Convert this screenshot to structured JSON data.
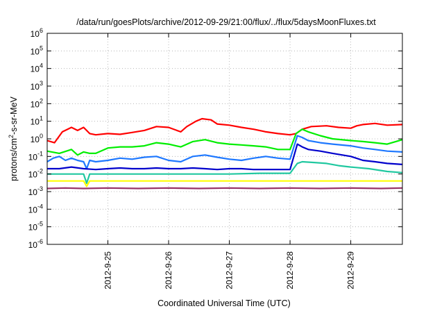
{
  "chart_data": {
    "type": "line",
    "title": "/data/run/goesPlots/archive/2012-09-29/21:00/flux/../flux/5daysMoonFluxes.txt",
    "xlabel": "Coordinated Universal Time (UTC)",
    "ylabel": {
      "base": "protons/cm",
      "sup": "2",
      "rest": "-s-sr-MeV"
    },
    "y_scale": "log",
    "ylim": [
      1e-06,
      1000000.0
    ],
    "y_ticks": [
      {
        "value": 1e-06,
        "base": "10",
        "exp": "-6"
      },
      {
        "value": 1e-05,
        "base": "10",
        "exp": "-5"
      },
      {
        "value": 0.0001,
        "base": "10",
        "exp": "-4"
      },
      {
        "value": 0.001,
        "base": "10",
        "exp": "-3"
      },
      {
        "value": 0.01,
        "base": "10",
        "exp": "-2"
      },
      {
        "value": 0.1,
        "base": "10",
        "exp": "-1"
      },
      {
        "value": 1,
        "base": "10",
        "exp": "0"
      },
      {
        "value": 10,
        "base": "10",
        "exp": "1"
      },
      {
        "value": 100,
        "base": "10",
        "exp": "2"
      },
      {
        "value": 1000,
        "base": "10",
        "exp": "3"
      },
      {
        "value": 10000,
        "base": "10",
        "exp": "4"
      },
      {
        "value": 100000,
        "base": "10",
        "exp": "5"
      },
      {
        "value": 1000000,
        "base": "10",
        "exp": "6"
      }
    ],
    "xlim": [
      24.0,
      29.85
    ],
    "x_ticks": [
      {
        "value": 25,
        "label": "2012-9-25"
      },
      {
        "value": 26,
        "label": "2012-9-26"
      },
      {
        "value": 27,
        "label": "2012-9-27"
      },
      {
        "value": 28,
        "label": "2012-9-28"
      },
      {
        "value": 29,
        "label": "2012-9-29"
      }
    ],
    "grid": true,
    "legend": "none",
    "series": [
      {
        "color": "#ff0000",
        "x": [
          24.0,
          24.12,
          24.25,
          24.4,
          24.5,
          24.6,
          24.7,
          24.8,
          25.0,
          25.2,
          25.4,
          25.6,
          25.8,
          26.0,
          26.2,
          26.3,
          26.45,
          26.55,
          26.7,
          26.8,
          27.0,
          27.2,
          27.4,
          27.6,
          27.8,
          28.0,
          28.1,
          28.2,
          28.35,
          28.6,
          28.8,
          29.0,
          29.1,
          29.2,
          29.4,
          29.6,
          29.85
        ],
        "values": [
          0.8,
          0.6,
          2.5,
          4.5,
          3.0,
          4.5,
          2.0,
          1.7,
          2.0,
          1.8,
          2.3,
          3.0,
          5.0,
          4.5,
          2.5,
          5.0,
          10,
          14,
          12,
          7,
          6,
          4.5,
          3.5,
          2.5,
          2.0,
          1.7,
          2.0,
          3.5,
          5.0,
          5.5,
          4.5,
          4.0,
          5.5,
          6.5,
          7.5,
          6.0,
          6.5
        ]
      },
      {
        "color": "#00ee00",
        "x": [
          24.0,
          24.2,
          24.4,
          24.5,
          24.6,
          24.7,
          24.8,
          25.0,
          25.2,
          25.4,
          25.6,
          25.8,
          26.0,
          26.2,
          26.4,
          26.6,
          26.8,
          27.0,
          27.2,
          27.4,
          27.6,
          27.8,
          28.0,
          28.1,
          28.2,
          28.3,
          28.5,
          28.7,
          29.0,
          29.2,
          29.4,
          29.6,
          29.85
        ],
        "values": [
          0.2,
          0.15,
          0.25,
          0.12,
          0.18,
          0.15,
          0.15,
          0.3,
          0.35,
          0.35,
          0.4,
          0.6,
          0.5,
          0.35,
          0.7,
          0.9,
          0.6,
          0.5,
          0.45,
          0.4,
          0.35,
          0.25,
          0.25,
          2.0,
          3.5,
          2.5,
          1.5,
          1.0,
          0.8,
          0.7,
          0.6,
          0.5,
          0.9
        ]
      },
      {
        "color": "#1e78ff",
        "x": [
          24.0,
          24.1,
          24.2,
          24.3,
          24.4,
          24.5,
          24.6,
          24.65,
          24.7,
          24.8,
          25.0,
          25.2,
          25.4,
          25.6,
          25.8,
          26.0,
          26.2,
          26.4,
          26.6,
          26.8,
          27.0,
          27.2,
          27.4,
          27.6,
          27.8,
          28.0,
          28.12,
          28.2,
          28.3,
          28.5,
          28.7,
          29.0,
          29.2,
          29.4,
          29.6,
          29.85
        ],
        "values": [
          0.05,
          0.08,
          0.1,
          0.06,
          0.08,
          0.06,
          0.05,
          0.02,
          0.06,
          0.05,
          0.06,
          0.08,
          0.07,
          0.09,
          0.1,
          0.06,
          0.05,
          0.1,
          0.12,
          0.09,
          0.07,
          0.06,
          0.08,
          0.1,
          0.08,
          0.07,
          1.5,
          1.2,
          0.8,
          0.6,
          0.5,
          0.4,
          0.3,
          0.25,
          0.2,
          0.18
        ]
      },
      {
        "color": "#0000cc",
        "x": [
          24.0,
          24.2,
          24.4,
          24.6,
          24.8,
          25.0,
          25.2,
          25.4,
          25.6,
          25.8,
          26.0,
          26.2,
          26.4,
          26.6,
          26.8,
          27.0,
          27.2,
          27.4,
          27.6,
          27.8,
          28.0,
          28.12,
          28.2,
          28.3,
          28.5,
          28.7,
          29.0,
          29.2,
          29.4,
          29.6,
          29.85
        ],
        "values": [
          0.02,
          0.02,
          0.025,
          0.02,
          0.018,
          0.02,
          0.022,
          0.02,
          0.02,
          0.022,
          0.02,
          0.02,
          0.022,
          0.02,
          0.018,
          0.02,
          0.02,
          0.018,
          0.018,
          0.018,
          0.018,
          0.5,
          0.35,
          0.25,
          0.2,
          0.15,
          0.1,
          0.06,
          0.05,
          0.04,
          0.035
        ]
      },
      {
        "color": "#20c8a0",
        "x": [
          24.0,
          24.3,
          24.6,
          24.65,
          24.7,
          25.0,
          25.5,
          26.0,
          26.5,
          27.0,
          27.5,
          28.0,
          28.12,
          28.2,
          28.4,
          28.6,
          28.8,
          29.0,
          29.3,
          29.6,
          29.85
        ],
        "values": [
          0.01,
          0.01,
          0.01,
          0.003,
          0.01,
          0.01,
          0.01,
          0.01,
          0.01,
          0.01,
          0.011,
          0.011,
          0.04,
          0.05,
          0.045,
          0.04,
          0.03,
          0.025,
          0.02,
          0.014,
          0.012
        ]
      },
      {
        "color": "#ffff00",
        "x": [
          24.0,
          24.6,
          24.65,
          24.7,
          25.0,
          26.0,
          27.0,
          28.0,
          29.0,
          29.85
        ],
        "values": [
          0.004,
          0.004,
          0.002,
          0.004,
          0.004,
          0.004,
          0.004,
          0.004,
          0.004,
          0.004
        ]
      },
      {
        "color": "#993366",
        "x": [
          24.0,
          24.3,
          24.6,
          25.0,
          25.5,
          26.0,
          26.5,
          27.0,
          27.5,
          28.0,
          28.5,
          29.0,
          29.5,
          29.85
        ],
        "values": [
          0.0015,
          0.0016,
          0.0015,
          0.0016,
          0.0015,
          0.0016,
          0.0015,
          0.0016,
          0.0015,
          0.0016,
          0.0015,
          0.0016,
          0.0015,
          0.0016
        ]
      }
    ]
  }
}
